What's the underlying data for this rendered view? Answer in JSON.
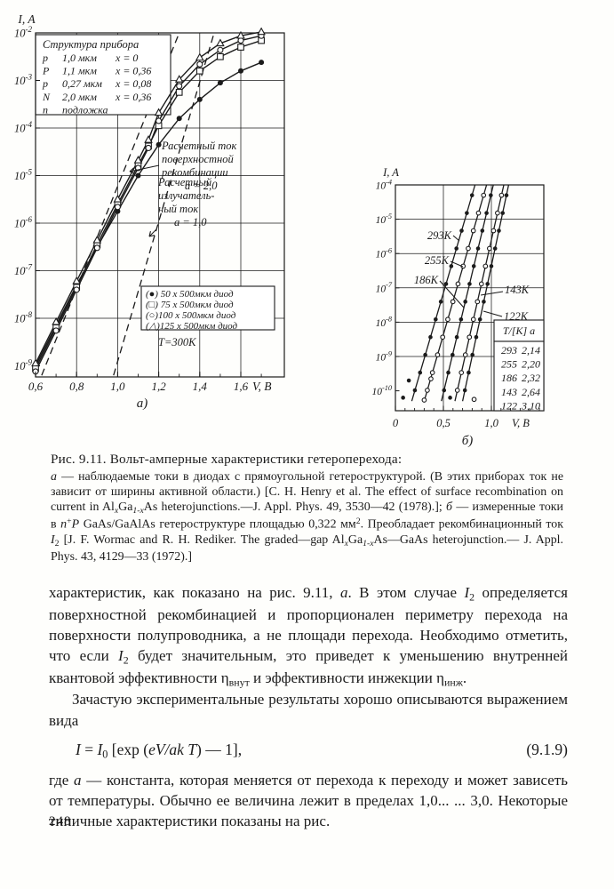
{
  "page": {
    "number": "248"
  },
  "figure": {
    "caption_title": "Рис. 9.11. Вольт-амперные характеристики гетероперехода:",
    "caption_rich": [
      {
        "t": "а",
        "s": "i"
      },
      {
        "t": " — наблюдаемые токи в диодах с прямоугольной гетероструктурой. (В этих приборах ток не зависит от ширины активной области.) [C. H. Henry et al. The effect of surface recombination on current in Al"
      },
      {
        "t": "x",
        "s": "isub"
      },
      {
        "t": "Ga"
      },
      {
        "t": "1-x",
        "s": "isub"
      },
      {
        "t": "As heterojunctions.—J. Appl. Phys. 49, 3530—42 (1978).]; "
      },
      {
        "t": "б",
        "s": "i"
      },
      {
        "t": " — измеренные токи в "
      },
      {
        "t": "n",
        "s": "i"
      },
      {
        "t": "+",
        "s": "sup"
      },
      {
        "t": "P",
        "s": "i"
      },
      {
        "t": " GaAs/GaAlAs гетероструктуре площадью 0,322 мм"
      },
      {
        "t": "2",
        "s": "sup"
      },
      {
        "t": ". Преобладает рекомбинационный ток "
      },
      {
        "t": "I",
        "s": "i"
      },
      {
        "t": "2",
        "s": "sub"
      },
      {
        "t": " [J. F. Wormac and R. H. Rediker. The graded—gap Al"
      },
      {
        "t": "x",
        "s": "isub"
      },
      {
        "t": "Ga"
      },
      {
        "t": "1-x",
        "s": "isub"
      },
      {
        "t": "As—GaAs heterojunction.— J. Appl. Phys. 43, 4129—33 (1972).]"
      }
    ]
  },
  "body": {
    "p1": [
      {
        "t": "характеристик, как показано на рис. 9.11, "
      },
      {
        "t": "а",
        "s": "i"
      },
      {
        "t": ". В этом случае "
      },
      {
        "t": "I",
        "s": "i"
      },
      {
        "t": "2",
        "s": "sub"
      },
      {
        "t": " определяется поверхностной рекомбинацией и пропорционален периметру перехода на поверхности полупроводника, а не площади перехода. Необходимо отметить, что если "
      },
      {
        "t": "I",
        "s": "i"
      },
      {
        "t": "2",
        "s": "sub"
      },
      {
        "t": " будет значительным, это приведет к уменьшению внутренней квантовой эффективности "
      },
      {
        "t": "η"
      },
      {
        "t": "внут",
        "s": "sub"
      },
      {
        "t": " и эффективности инжекции "
      },
      {
        "t": "η"
      },
      {
        "t": "инж",
        "s": "sub"
      },
      {
        "t": "."
      }
    ],
    "p2": "Зачастую экспериментальные результаты хорошо описываются выражением вида",
    "equation": [
      {
        "t": "I",
        "s": "i"
      },
      {
        "t": " = "
      },
      {
        "t": "I",
        "s": "i"
      },
      {
        "t": "0",
        "s": "sub"
      },
      {
        "t": " [exp ("
      },
      {
        "t": "eV/ak T",
        "s": "i"
      },
      {
        "t": ") — 1],"
      }
    ],
    "equation_number": "(9.1.9)",
    "p3": [
      {
        "t": "где "
      },
      {
        "t": "a",
        "s": "i"
      },
      {
        "t": " — константа, которая меняется от перехода к переходу и может зависеть от температуры. Обычно ее величина лежит в пределах 1,0... ... 3,0. Некоторые типичные характеристики  показаны  на  рис."
      }
    ]
  },
  "chart_data": [
    {
      "id": "a",
      "type": "line",
      "sublabel": "а)",
      "xlabel": "V, B",
      "ylabel": "I, A",
      "xlim": [
        0.6,
        1.81
      ],
      "ylog_lim": [
        -2,
        -9.23
      ],
      "x_ticks": [
        {
          "v": 0.6,
          "label": "0,6"
        },
        {
          "v": 0.8,
          "label": "0,8"
        },
        {
          "v": 1.0,
          "label": "1,0"
        },
        {
          "v": 1.2,
          "label": "1,2"
        },
        {
          "v": 1.4,
          "label": "1,4"
        },
        {
          "v": 1.6,
          "label": "1,6"
        }
      ],
      "y_exponents": [
        -2,
        -3,
        -4,
        -5,
        -6,
        -7,
        -8,
        -9
      ],
      "v_gridlines": [
        0.8,
        1.0,
        1.2,
        1.4,
        1.6
      ],
      "structure_box": {
        "title": "Структура прибора",
        "rows": [
          [
            "p",
            "1,0 мкм",
            "x = 0"
          ],
          [
            "P",
            "1,1 мкм",
            "x = 0,36"
          ],
          [
            "p",
            "0,27 мкм",
            "x = 0,08"
          ],
          [
            "N",
            "2,0 мкм",
            "x = 0,36"
          ],
          [
            "n",
            "подложка",
            ""
          ]
        ]
      },
      "annotations": [
        {
          "lines": [
            "Расчетный ток",
            "поверхностной",
            "рекомбинации",
            "a = 2,0"
          ]
        },
        {
          "lines": [
            "Расчетный",
            "излучатель-",
            "ный ток",
            "a = 1,0"
          ]
        }
      ],
      "legend_rows": [
        "(●) 50  x  500мкм диод",
        "(□) 75  x  500мкм диод",
        "(○)100  x  500мкм диод",
        "(△)125  x  500мкм диод"
      ],
      "temp_note": "T=300K",
      "series": [
        {
          "name": "50 x 500мкм диод",
          "marker": "circle-filled",
          "points": [
            [
              0.6,
              -9.0
            ],
            [
              0.7,
              -8.15
            ],
            [
              0.8,
              -7.3
            ],
            [
              0.9,
              -6.5
            ],
            [
              1.0,
              -5.75
            ],
            [
              1.1,
              -5.0
            ],
            [
              1.2,
              -4.35
            ],
            [
              1.3,
              -3.8
            ],
            [
              1.4,
              -3.4
            ],
            [
              1.5,
              -3.05
            ],
            [
              1.6,
              -2.8
            ],
            [
              1.7,
              -2.62
            ]
          ]
        },
        {
          "name": "75 x 500мкм диод",
          "marker": "square-open",
          "points": [
            [
              0.6,
              -9.06
            ],
            [
              0.7,
              -8.2
            ],
            [
              0.8,
              -7.35
            ],
            [
              0.9,
              -6.45
            ],
            [
              1.0,
              -5.6
            ],
            [
              1.1,
              -4.78
            ],
            [
              1.15,
              -4.38
            ],
            [
              1.2,
              -3.95
            ],
            [
              1.3,
              -3.25
            ],
            [
              1.4,
              -2.8
            ],
            [
              1.5,
              -2.5
            ],
            [
              1.6,
              -2.3
            ],
            [
              1.7,
              -2.16
            ]
          ]
        },
        {
          "name": "100 x 500мкм диод",
          "marker": "circle-open",
          "points": [
            [
              0.6,
              -9.12
            ],
            [
              0.7,
              -8.26
            ],
            [
              0.8,
              -7.4
            ],
            [
              0.9,
              -6.52
            ],
            [
              1.0,
              -5.66
            ],
            [
              1.1,
              -4.84
            ],
            [
              1.15,
              -4.42
            ],
            [
              1.2,
              -3.85
            ],
            [
              1.3,
              -3.12
            ],
            [
              1.4,
              -2.66
            ],
            [
              1.5,
              -2.36
            ],
            [
              1.6,
              -2.16
            ],
            [
              1.7,
              -2.06
            ]
          ]
        },
        {
          "name": "125 x 500мкм диод",
          "marker": "triangle-open",
          "points": [
            [
              0.6,
              -8.95
            ],
            [
              0.7,
              -8.08
            ],
            [
              0.8,
              -7.22
            ],
            [
              0.9,
              -6.36
            ],
            [
              1.0,
              -5.5
            ],
            [
              1.1,
              -4.68
            ],
            [
              1.15,
              -4.25
            ],
            [
              1.2,
              -3.68
            ],
            [
              1.3,
              -2.98
            ],
            [
              1.4,
              -2.52
            ],
            [
              1.5,
              -2.22
            ],
            [
              1.6,
              -2.06
            ],
            [
              1.7,
              -1.98
            ]
          ]
        }
      ],
      "calc_lines": [
        {
          "name": "расчетный ток поверхностной рекомбинации a = 2,0",
          "points": [
            [
              0.63,
              -9.2
            ],
            [
              1.3,
              -2.0
            ]
          ]
        },
        {
          "name": "расчетный излучательный ток a = 1,0",
          "points": [
            [
              0.98,
              -9.2
            ],
            [
              1.47,
              -2.0
            ]
          ]
        }
      ]
    },
    {
      "id": "b",
      "type": "line",
      "sublabel": "б)",
      "xlabel": "V, B",
      "ylabel": "I, A",
      "xlim": [
        0,
        1.55
      ],
      "ylog_lim": [
        -4,
        -10.58
      ],
      "x_ticks": [
        {
          "v": 0,
          "label": "0"
        },
        {
          "v": 0.5,
          "label": "0,5"
        },
        {
          "v": 1.0,
          "label": "1,0"
        }
      ],
      "y_exponents": [
        -4,
        -5,
        -6,
        -7,
        -8,
        -9,
        -10
      ],
      "v_gridlines": [
        0.5,
        1.0
      ],
      "series": [
        {
          "name": "293K",
          "a": "2,14",
          "marker": "circle-filled",
          "points": [
            [
              0.17,
              -10.3
            ],
            [
              0.83,
              -4.0
            ]
          ]
        },
        {
          "name": "255K",
          "a": "2,20",
          "marker": "circle-open",
          "points": [
            [
              0.3,
              -10.3
            ],
            [
              0.95,
              -4.0
            ]
          ]
        },
        {
          "name": "186K",
          "a": "2,32",
          "marker": "circle-filled",
          "points": [
            [
              0.48,
              -10.3
            ],
            [
              1.02,
              -4.0
            ]
          ]
        },
        {
          "name": "143K",
          "a": "2,64",
          "marker": "circle-open",
          "points": [
            [
              0.62,
              -10.3
            ],
            [
              1.13,
              -4.0
            ]
          ]
        },
        {
          "name": "122K",
          "a": "3,10",
          "marker": "circle-filled",
          "points": [
            [
              0.7,
              -10.3
            ],
            [
              1.18,
              -4.0
            ]
          ]
        }
      ],
      "outliers": [
        {
          "marker": "circle-filled",
          "points": [
            [
              0.08,
              -10.2
            ],
            [
              0.14,
              -9.7
            ],
            [
              0.57,
              -10.2
            ]
          ]
        },
        {
          "marker": "circle-open",
          "points": [
            [
              0.3,
              -10.27
            ],
            [
              0.37,
              -9.65
            ],
            [
              0.82,
              -10.25
            ]
          ]
        }
      ],
      "temp_table": {
        "header": "T/[K]  a",
        "rows": [
          [
            "293",
            "2,14"
          ],
          [
            "255",
            "2,20"
          ],
          [
            "186",
            "2,32"
          ],
          [
            "143",
            "2,64"
          ],
          [
            "122",
            "3,10"
          ]
        ]
      }
    }
  ]
}
